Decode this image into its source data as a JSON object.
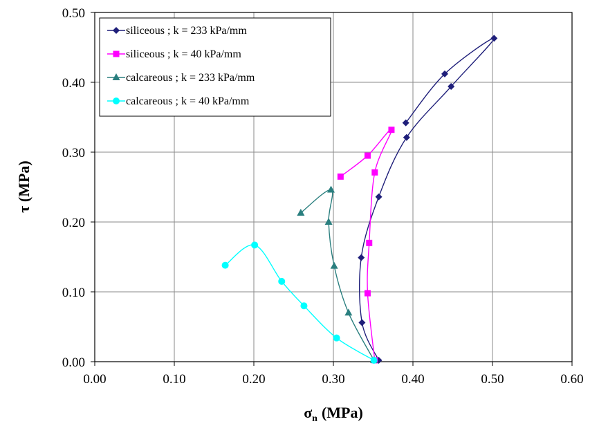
{
  "chart_data": {
    "type": "scatter",
    "xlabel": "σ",
    "xlabel_sub": "n",
    "xlabel_unit": "(MPa)",
    "ylabel": "τ  (MPa)",
    "xlim": [
      0,
      0.6
    ],
    "ylim": [
      0,
      0.5
    ],
    "x_ticks": [
      "0.00",
      "0.10",
      "0.20",
      "0.30",
      "0.40",
      "0.50",
      "0.60"
    ],
    "y_ticks": [
      "0.00",
      "0.10",
      "0.20",
      "0.30",
      "0.40",
      "0.50"
    ],
    "grid": true,
    "legend_position": "top-left",
    "series": [
      {
        "name": "siliceous ; k = 233 kPa/mm",
        "color": "#1f1f7a",
        "marker": "diamond",
        "x": [
          0.357,
          0.336,
          0.335,
          0.357,
          0.392,
          0.448,
          0.502,
          0.44,
          0.391
        ],
        "y": [
          0.002,
          0.056,
          0.149,
          0.236,
          0.321,
          0.394,
          0.463,
          0.412,
          0.342
        ]
      },
      {
        "name": "siliceous ; k = 40 kPa/mm",
        "color": "#ff00ff",
        "marker": "square",
        "x": [
          0.352,
          0.343,
          0.345,
          0.352,
          0.373,
          0.343,
          0.309
        ],
        "y": [
          0.002,
          0.098,
          0.17,
          0.271,
          0.332,
          0.295,
          0.265
        ]
      },
      {
        "name": "calcareous ; k = 233 kPa/mm",
        "color": "#2a7f7f",
        "marker": "triangle",
        "x": [
          0.351,
          0.319,
          0.301,
          0.294,
          0.297,
          0.259
        ],
        "y": [
          0.002,
          0.07,
          0.137,
          0.2,
          0.246,
          0.213
        ]
      },
      {
        "name": "calcareous ; k = 40 kPa/mm",
        "color": "#00ffff",
        "marker": "circle",
        "x": [
          0.351,
          0.304,
          0.263,
          0.235,
          0.201,
          0.164
        ],
        "y": [
          0.002,
          0.034,
          0.08,
          0.115,
          0.167,
          0.138
        ]
      }
    ]
  }
}
